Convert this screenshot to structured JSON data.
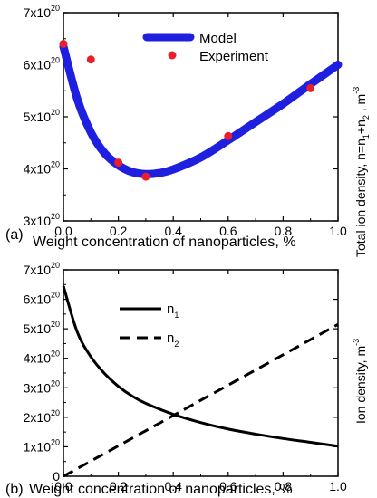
{
  "chart_data": [
    {
      "type": "line",
      "panel_label": "(a)",
      "xlabel": "Weight concentration of nanoparticles, %",
      "ylabel": "Total ion density, n=n1+n2, m-3",
      "ylabel_parts": {
        "main": "Total ion density, n=n",
        "s1": "1",
        "mid": "+n",
        "s2": "2",
        "tail": " , m",
        "sup": "-3"
      },
      "xlim": [
        0,
        1.0
      ],
      "ylim": [
        3e+20,
        7e+20
      ],
      "xticks": [
        "0.0",
        "0.2",
        "0.4",
        "0.6",
        "0.8",
        "1.0"
      ],
      "yticks": [
        {
          "m": "3",
          "e": "20"
        },
        {
          "m": "4",
          "e": "20"
        },
        {
          "m": "5",
          "e": "20"
        },
        {
          "m": "6",
          "e": "20"
        },
        {
          "m": "7",
          "e": "20"
        }
      ],
      "ytick_base": "x10",
      "legend_position": "top-center",
      "series": [
        {
          "name": "Model",
          "style": "thick-line",
          "color": "#1f1fe0",
          "x": [
            0.0,
            0.05,
            0.1,
            0.15,
            0.2,
            0.25,
            0.3,
            0.35,
            0.4,
            0.5,
            0.6,
            0.7,
            0.8,
            0.9,
            1.0
          ],
          "y": [
            6.35e+20,
            5.35e+20,
            4.7e+20,
            4.3e+20,
            4.07e+20,
            3.94e+20,
            3.9e+20,
            3.92e+20,
            3.99e+20,
            4.22e+20,
            4.55e+20,
            4.9e+20,
            5.25e+20,
            5.63e+20,
            6e+20
          ]
        },
        {
          "name": "Experiment",
          "style": "markers",
          "color": "#e8202a",
          "x": [
            0.0,
            0.1,
            0.2,
            0.3,
            0.6,
            0.9
          ],
          "y": [
            6.4e+20,
            6.1e+20,
            4.12e+20,
            3.85e+20,
            4.63e+20,
            5.55e+20
          ]
        }
      ]
    },
    {
      "type": "line",
      "panel_label": "(b)",
      "xlabel": "Weight concentration of nanoparticles, %",
      "ylabel": "Ion density, m-3",
      "ylabel_parts": {
        "main": "Ion density, m",
        "sup": "-3"
      },
      "xlim": [
        0,
        1.0
      ],
      "ylim": [
        0,
        7e+20
      ],
      "xticks": [
        "0.0",
        "0.2",
        "0.4",
        "0.6",
        "0.8",
        "1.0"
      ],
      "yticks": [
        {
          "m": "0",
          "e": ""
        },
        {
          "m": "1",
          "e": "20"
        },
        {
          "m": "2",
          "e": "20"
        },
        {
          "m": "3",
          "e": "20"
        },
        {
          "m": "4",
          "e": "20"
        },
        {
          "m": "5",
          "e": "20"
        },
        {
          "m": "6",
          "e": "20"
        },
        {
          "m": "7",
          "e": "20"
        }
      ],
      "ytick_base": "x10",
      "legend_position": "top-center",
      "series": [
        {
          "name": "n1",
          "name_parts": {
            "base": "n",
            "sub": "1"
          },
          "style": "solid",
          "color": "#000000",
          "x": [
            0.0,
            0.05,
            0.1,
            0.15,
            0.2,
            0.25,
            0.3,
            0.4,
            0.5,
            0.6,
            0.7,
            0.8,
            0.9,
            1.0
          ],
          "y": [
            6.45e+20,
            4.9e+20,
            4.05e+20,
            3.48e+20,
            3.05e+20,
            2.72e+20,
            2.47e+20,
            2.1e+20,
            1.82e+20,
            1.6e+20,
            1.43e+20,
            1.28e+20,
            1.15e+20,
            1.02e+20
          ]
        },
        {
          "name": "n2",
          "name_parts": {
            "base": "n",
            "sub": "2"
          },
          "style": "dashed",
          "color": "#000000",
          "x": [
            0.0,
            1.0
          ],
          "y": [
            0.0,
            5.15e+20
          ]
        }
      ]
    }
  ]
}
